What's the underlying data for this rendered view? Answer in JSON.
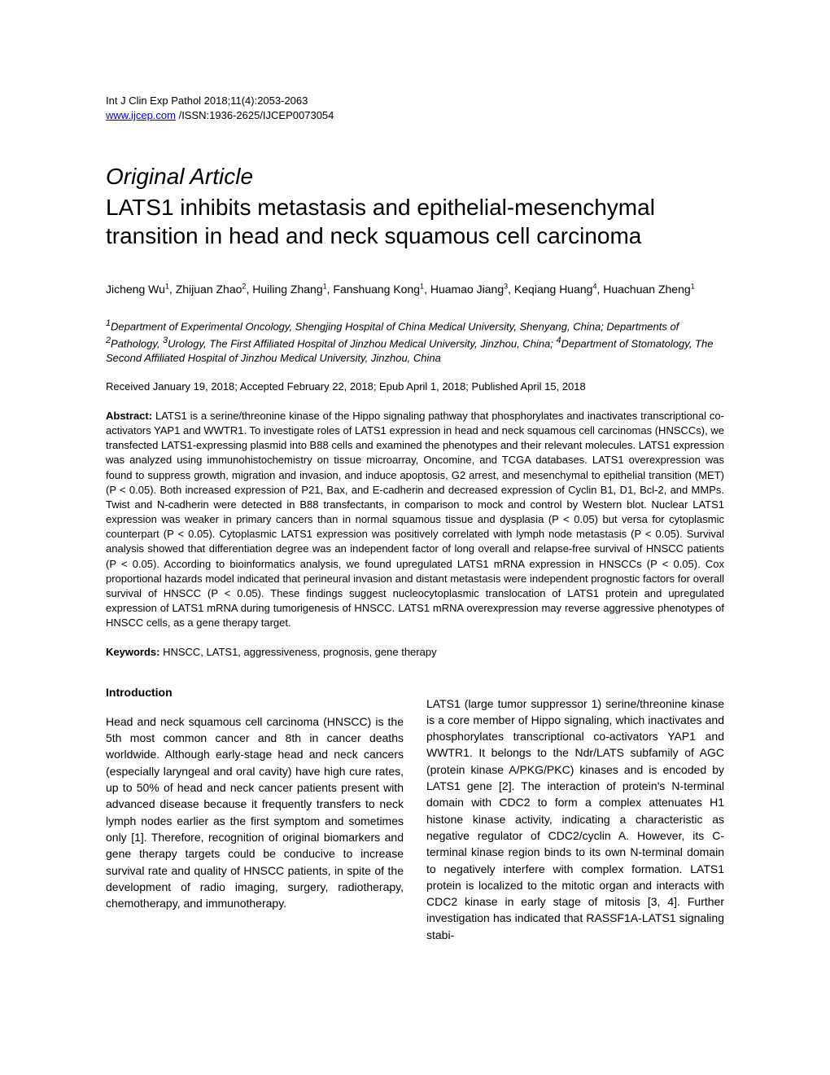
{
  "header": {
    "journal_line": "Int J Clin Exp Pathol 2018;11(4):2053-2063",
    "url": "www.ijcep.com",
    "issn_line": " /ISSN:1936-2625/IJCEP0073054"
  },
  "article": {
    "type": "Original Article",
    "title": "LATS1 inhibits metastasis and epithelial-mesenchymal transition in head and neck squamous cell carcinoma"
  },
  "authors_html": "Jicheng Wu<sup>1</sup>, Zhijuan Zhao<sup>2</sup>, Huiling Zhang<sup>1</sup>, Fanshuang Kong<sup>1</sup>, Huamao Jiang<sup>3</sup>, Keqiang Huang<sup>4</sup>, Huachuan Zheng<sup>1</sup>",
  "affiliations_html": "<sup>1</sup>Department of Experimental Oncology, Shengjing Hospital of China Medical University, Shenyang, China; Departments of <sup>2</sup>Pathology, <sup>3</sup>Urology, The First Affiliated Hospital of Jinzhou Medical University, Jinzhou, China; <sup>4</sup>Department of Stomatology, The Second Affiliated Hospital of Jinzhou Medical University, Jinzhou, China",
  "dates": "Received January 19, 2018; Accepted February 22, 2018; Epub April 1, 2018; Published April 15, 2018",
  "abstract_label": "Abstract:",
  "abstract_text": " LATS1 is a serine/threonine kinase of the Hippo signaling pathway that phosphorylates and inactivates transcriptional co-activators YAP1 and WWTR1. To investigate roles of LATS1 expression in head and neck squamous cell carcinomas (HNSCCs), we transfected LATS1-expressing plasmid into B88 cells and examined the phenotypes and their relevant molecules. LATS1 expression was analyzed using immunohistochemistry on tissue microarray, Oncomine, and TCGA databases. LATS1 overexpression was found to suppress growth, migration and invasion, and induce apoptosis, G2 arrest, and mesenchymal to epithelial transition (MET) (P < 0.05). Both increased expression of P21, Bax, and E-cadherin and decreased expression of Cyclin B1, D1, Bcl-2, and MMPs. Twist and N-cadherin were detected in B88 transfectants, in comparison to mock and control by Western blot. Nuclear LATS1 expression was weaker in primary cancers than in normal squamous tissue and dysplasia (P < 0.05) but versa for cytoplasmic counterpart (P < 0.05). Cytoplasmic LATS1 expression was positively correlated with lymph node metastasis (P < 0.05). Survival analysis showed that differentiation degree was an independent factor of long overall and relapse-free survival of HNSCC patients (P < 0.05). According to bioinformatics analysis, we found upregulated LATS1 mRNA expression in HNSCCs (P < 0.05). Cox proportional hazards model indicated that perineural invasion and distant metastasis were independent prognostic factors for overall survival of HNSCC (P < 0.05). These findings suggest nucleocytoplasmic translocation of LATS1 protein and upregulated expression of LATS1 mRNA during tumorigenesis of HNSCC. LATS1 mRNA overexpression may reverse aggressive phenotypes of HNSCC cells, as a gene therapy target.",
  "keywords_label": "Keywords:",
  "keywords_text": " HNSCC, LATS1, aggressiveness, prognosis, gene therapy",
  "section": {
    "introduction": "Introduction"
  },
  "body": {
    "col1_p1": "Head and neck squamous cell carcinoma (HNSCC) is the 5th most common cancer and 8th in cancer deaths worldwide. Although early-stage head and neck cancers (especially laryngeal and oral cavity) have high cure rates, up to 50% of head and neck cancer patients present with advanced disease because it frequently transfers to neck lymph nodes earlier as the first symptom and sometimes only [1]. Therefore, recognition of original biomarkers and gene therapy targets could be conducive to increase survival rate and quality of HNSCC patients, in spite of the development of radio imaging, surgery, radiotherapy, chemotherapy, and immunotherapy.",
    "col2_p1": "LATS1 (large tumor suppressor 1) serine/threonine kinase is a core member of Hippo signaling, which inactivates and phosphorylates transcriptional co-activators YAP1 and WWTR1. It belongs to the Ndr/LATS subfamily of AGC (protein kinase A/PKG/PKC) kinases and is encoded by LATS1 gene [2]. The interaction of protein's N-terminal domain with CDC2 to form a complex attenuates H1 histone kinase activity, indicating a characteristic as negative regulator of CDC2/cyclin A. However, its C-terminal kinase region binds to its own N-terminal domain to negatively interfere with complex formation. LATS1 protein is localized to the mitotic organ and interacts with CDC2 kinase in early stage of mitosis [3, 4]. Further investigation has indicated that RASSF1A-LATS1 signaling stabi-"
  }
}
